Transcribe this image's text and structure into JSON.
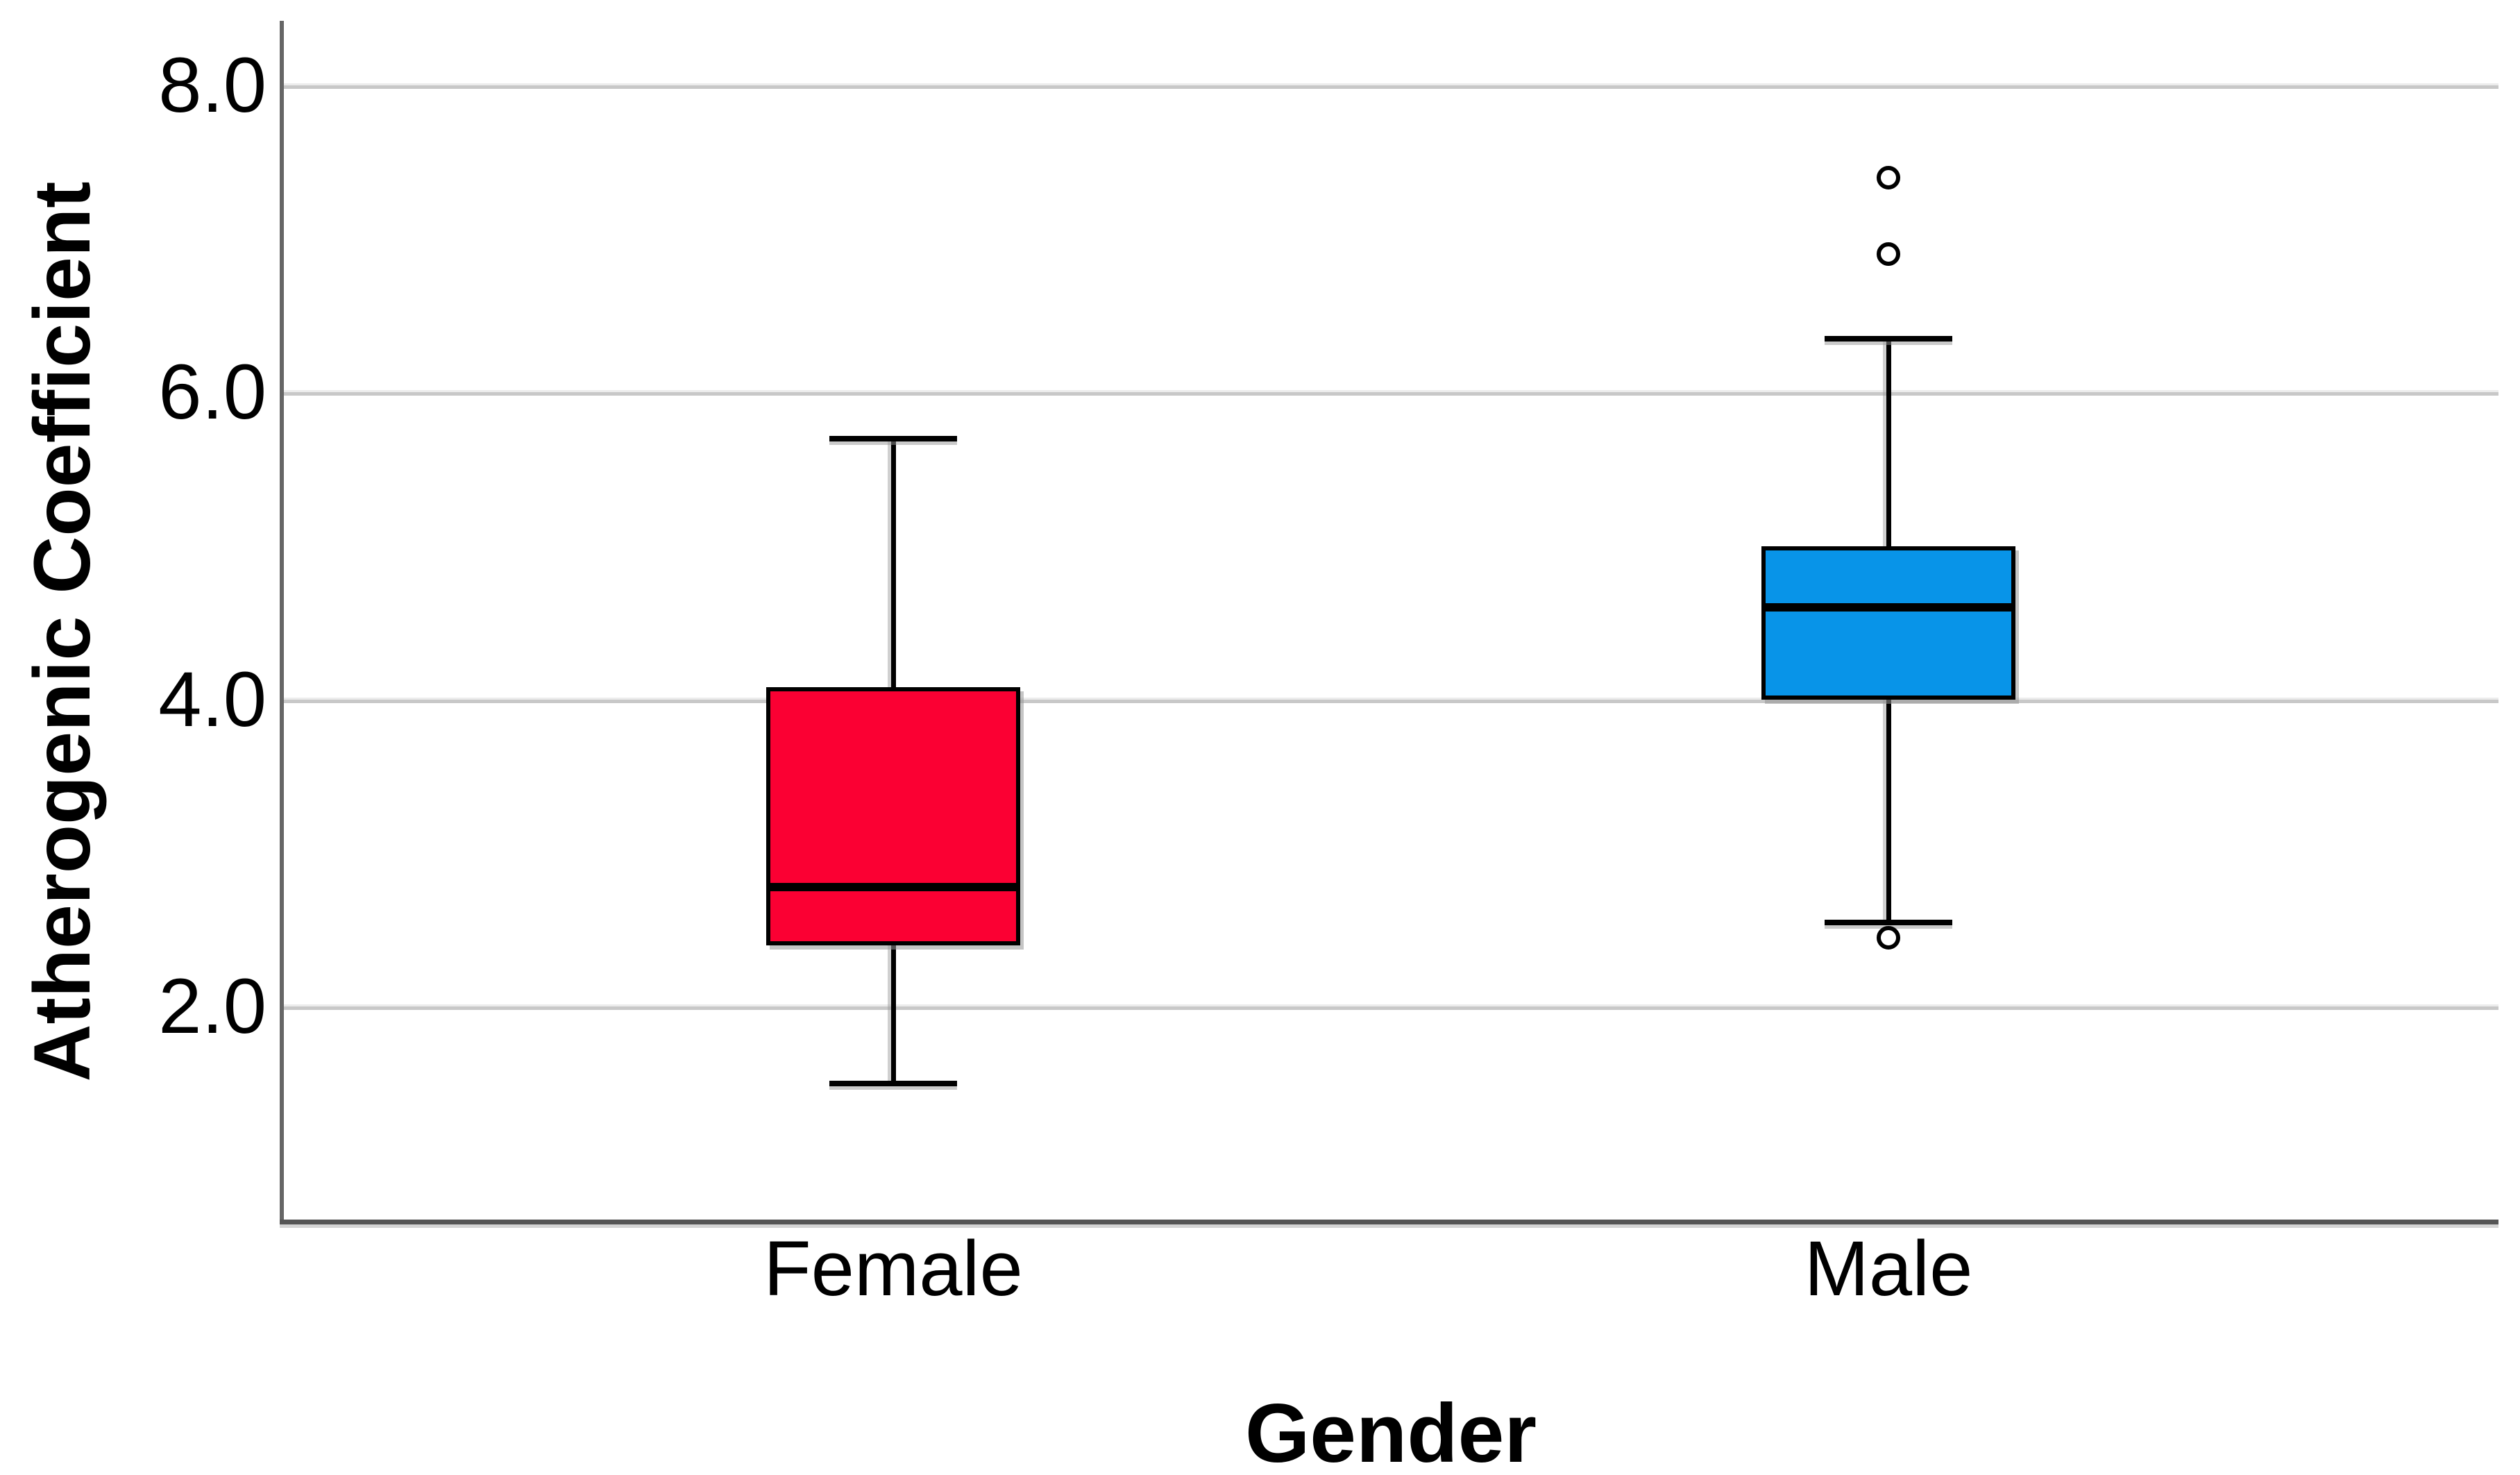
{
  "chart_data": {
    "type": "boxplot",
    "title": "",
    "xlabel": "Gender",
    "ylabel": "Atherogenic Coefficient",
    "categories": [
      "Female",
      "Male"
    ],
    "y_ticks": [
      {
        "value": 8.0,
        "label": "8.0"
      },
      {
        "value": 6.0,
        "label": "6.0"
      },
      {
        "value": 4.0,
        "label": "4.0"
      },
      {
        "value": 2.0,
        "label": "2.0"
      }
    ],
    "ylim": [
      0.6,
      8.42
    ],
    "grid": "horizontal",
    "legend": "none",
    "series": [
      {
        "name": "Female",
        "color": "#FB0033",
        "whisker_low": 1.5,
        "q1": 2.4,
        "median": 2.78,
        "q3": 4.08,
        "whisker_high": 5.7,
        "outliers": []
      },
      {
        "name": "Male",
        "color": "#0894E8",
        "whisker_low": 2.55,
        "q1": 4.0,
        "median": 4.6,
        "q3": 5.0,
        "whisker_high": 6.35,
        "outliers": [
          7.4,
          6.9,
          2.45
        ]
      }
    ]
  },
  "colors": {
    "background": "#FFFFFF",
    "gridline": "#C8C8C8",
    "axis_line": "#5A5A5A",
    "box_outline": "#000000",
    "female_box": "#FB0033",
    "male_box": "#0894E8",
    "text": "#000000"
  }
}
